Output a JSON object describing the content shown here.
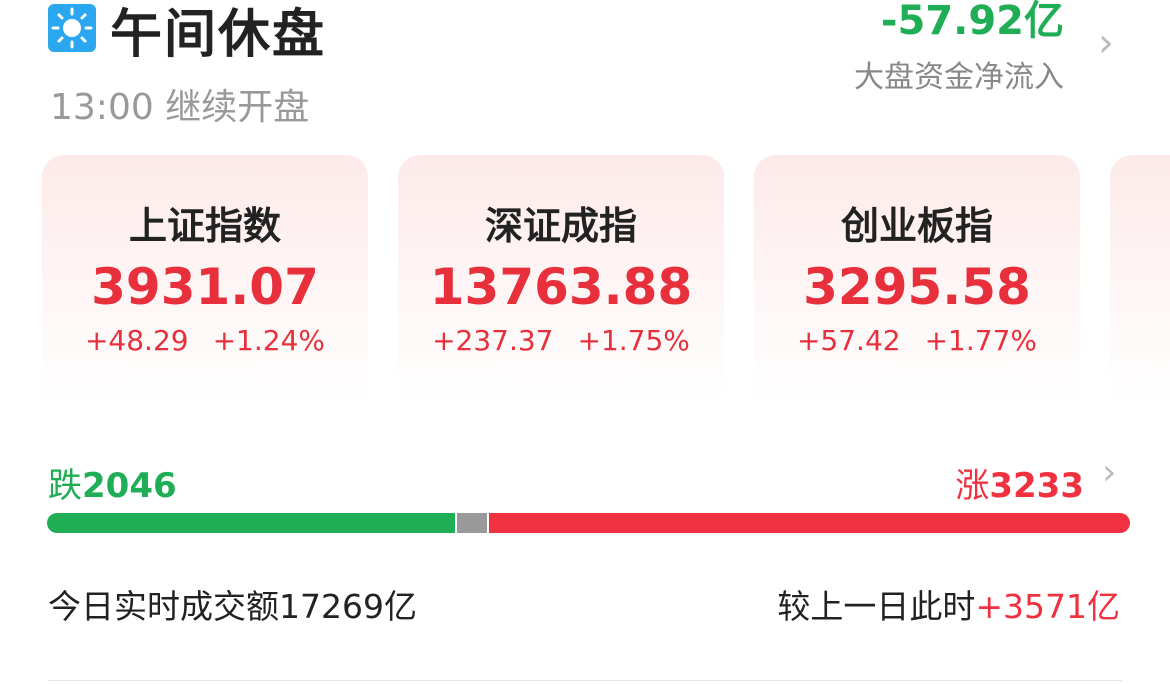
{
  "header": {
    "title": "午间休盘",
    "resume_time": "13:00",
    "resume_text": "继续开盘",
    "icon": "sun-icon"
  },
  "capital_flow": {
    "value": "-57.92亿",
    "label": "大盘资金净流入",
    "color": "#1fae55"
  },
  "indices": [
    {
      "name": "上证指数",
      "value": "3931.07",
      "change": "+48.29",
      "pct": "+1.24%"
    },
    {
      "name": "深证成指",
      "value": "13763.88",
      "change": "+237.37",
      "pct": "+1.75%"
    },
    {
      "name": "创业板指",
      "value": "3295.58",
      "change": "+57.42",
      "pct": "+1.77%"
    }
  ],
  "breadth": {
    "down_label": "跌",
    "down": "2046",
    "up_label": "涨",
    "up": "3233",
    "down_color": "#1fae55",
    "up_color": "#f0313f"
  },
  "turnover": {
    "label": "今日实时成交额17269亿",
    "compare_label": "较上一日此时",
    "compare_value": "+3571亿"
  }
}
